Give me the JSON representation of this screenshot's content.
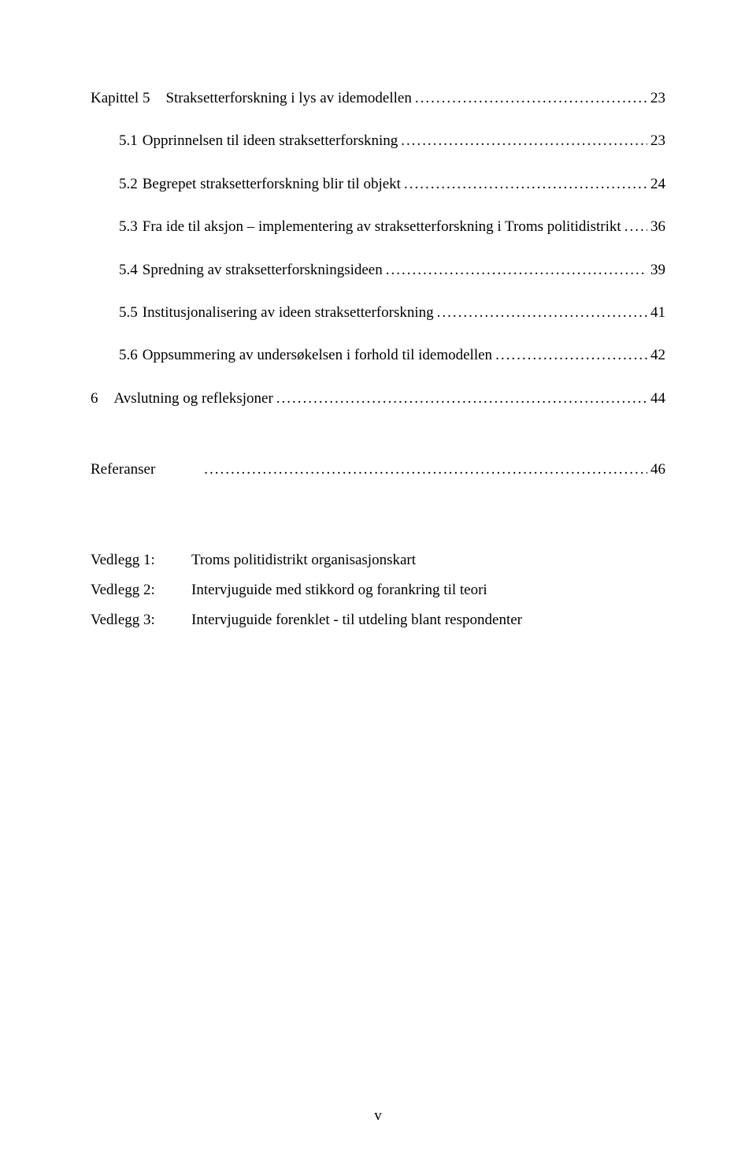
{
  "toc": {
    "chapter5": {
      "label": "Kapittel 5",
      "title": "Straksetterforskning i lys av idemodellen",
      "page": "23",
      "items": [
        {
          "label": "5.1",
          "title": "Opprinnelsen til ideen straksetterforskning",
          "page": "23"
        },
        {
          "label": "5.2",
          "title": "Begrepet straksetterforskning blir til objekt",
          "page": "24"
        },
        {
          "label": "5.3",
          "title": "Fra ide til aksjon – implementering av straksetterforskning i Troms politidistrikt",
          "page": "36"
        },
        {
          "label": "5.4",
          "title": "Spredning av straksetterforskningsideen",
          "page": "39"
        },
        {
          "label": "5.5",
          "title": "Institusjonalisering av ideen straksetterforskning",
          "page": "41"
        },
        {
          "label": "5.6",
          "title": "Oppsummering av undersøkelsen i forhold til idemodellen",
          "page": "42"
        }
      ]
    },
    "chapter6": {
      "label": "6",
      "title": "Avslutning og refleksjoner",
      "page": "44"
    },
    "references": {
      "label": "Referanser",
      "page": "46"
    }
  },
  "attachments": [
    {
      "key": "Vedlegg 1:",
      "value": "Troms politidistrikt organisasjonskart"
    },
    {
      "key": "Vedlegg 2:",
      "value": "Intervjuguide med stikkord og forankring til teori"
    },
    {
      "key": "Vedlegg 3:",
      "value": "Intervjuguide forenklet - til utdeling blant respondenter"
    }
  ],
  "footer": {
    "page_number": "v"
  }
}
